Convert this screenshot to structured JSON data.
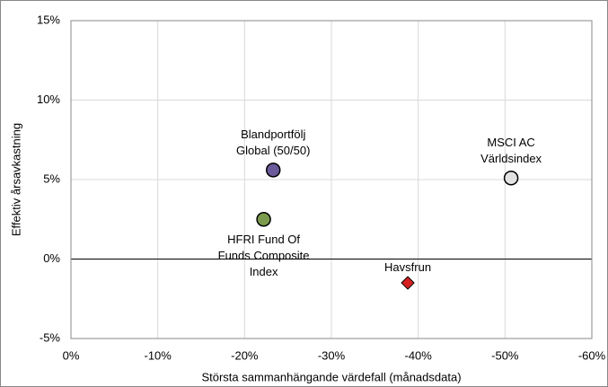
{
  "chart_data": {
    "type": "scatter",
    "x_label": "Största sammanhängande värdefall (månadsdata)",
    "y_label": "Effektiv årsavkastning",
    "xlim": [
      0,
      -60
    ],
    "xticks": [
      {
        "value": 0,
        "label": "0%"
      },
      {
        "value": -10,
        "label": "-10%"
      },
      {
        "value": -20,
        "label": "-20%"
      },
      {
        "value": -30,
        "label": "-30%"
      },
      {
        "value": -40,
        "label": "-40%"
      },
      {
        "value": -50,
        "label": "-50%"
      },
      {
        "value": -60,
        "label": "-60%"
      }
    ],
    "ylim": [
      -5,
      15
    ],
    "yticks": [
      {
        "value": -5,
        "label": "-5%"
      },
      {
        "value": 0,
        "label": "0%"
      },
      {
        "value": 5,
        "label": "5%"
      },
      {
        "value": 10,
        "label": "10%"
      },
      {
        "value": 15,
        "label": "15%"
      }
    ],
    "grid": true,
    "series": [
      {
        "name": "Blandportfölj Global (50/50)",
        "color": "#6b5b9a",
        "marker": "circle",
        "x": [
          -23.3
        ],
        "values": [
          5.6
        ]
      },
      {
        "name": "HFRI Fund Of Funds Composite Index",
        "color": "#7b9a4c",
        "marker": "circle",
        "x": [
          -22.2
        ],
        "values": [
          2.5
        ]
      },
      {
        "name": "MSCI AC Världsindex",
        "color": "#e2e2e2",
        "marker": "circle",
        "x": [
          -50.7
        ],
        "values": [
          5.1
        ]
      },
      {
        "name": "Havsfrun",
        "color": "#d42020",
        "marker": "diamond",
        "x": [
          -38.8
        ],
        "values": [
          -1.5
        ]
      }
    ]
  }
}
